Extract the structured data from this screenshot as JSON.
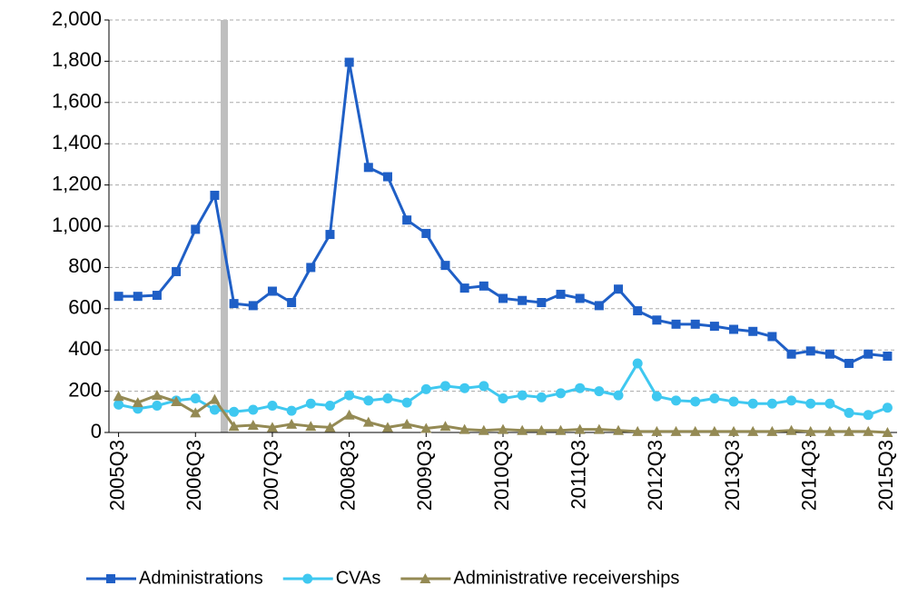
{
  "chart_data": {
    "type": "line",
    "categories": [
      "2005Q3",
      null,
      null,
      null,
      "2006Q3",
      null,
      null,
      null,
      "2007Q3",
      null,
      null,
      null,
      "2008Q3",
      null,
      null,
      null,
      "2009Q3",
      null,
      null,
      null,
      "2010Q3",
      null,
      null,
      null,
      "2011Q3",
      null,
      null,
      null,
      "2012Q3",
      null,
      null,
      null,
      "2013Q3",
      null,
      null,
      null,
      "2014Q3",
      null,
      null,
      null,
      "2015Q3"
    ],
    "series": [
      {
        "name": "Administrations",
        "color": "#1f5fc6",
        "marker": "square",
        "values": [
          660,
          660,
          665,
          780,
          985,
          1150,
          625,
          615,
          685,
          630,
          800,
          960,
          1795,
          1285,
          1240,
          1030,
          965,
          810,
          700,
          710,
          650,
          640,
          630,
          670,
          650,
          615,
          695,
          590,
          545,
          525,
          525,
          515,
          500,
          490,
          465,
          380,
          395,
          380,
          335,
          380,
          370
        ]
      },
      {
        "name": "CVAs",
        "color": "#3fc8f0",
        "marker": "circle",
        "values": [
          135,
          115,
          130,
          155,
          165,
          110,
          100,
          110,
          130,
          105,
          140,
          130,
          180,
          155,
          165,
          145,
          210,
          225,
          215,
          225,
          165,
          180,
          170,
          190,
          215,
          200,
          180,
          335,
          175,
          155,
          150,
          165,
          150,
          140,
          140,
          155,
          140,
          140,
          95,
          85,
          120
        ]
      },
      {
        "name": "Administrative receiverships",
        "color": "#948a54",
        "marker": "triangle",
        "values": [
          175,
          145,
          180,
          150,
          95,
          160,
          30,
          35,
          25,
          40,
          30,
          25,
          85,
          50,
          25,
          40,
          20,
          30,
          15,
          10,
          15,
          10,
          10,
          10,
          15,
          15,
          10,
          5,
          5,
          5,
          5,
          5,
          5,
          5,
          5,
          10,
          5,
          5,
          5,
          5,
          0
        ]
      }
    ],
    "ylim": [
      0,
      2000
    ],
    "yticks": [
      0,
      200,
      400,
      600,
      800,
      {
        "value": 1000,
        "label": "1,000"
      },
      {
        "value": 1200,
        "label": "1,200"
      },
      {
        "value": 1400,
        "label": "1,400"
      },
      {
        "value": 1600,
        "label": "1,600"
      },
      {
        "value": 1800,
        "label": "1,800"
      },
      {
        "value": 2000,
        "label": "2,000"
      }
    ],
    "grid": true,
    "legend": "bottom"
  }
}
